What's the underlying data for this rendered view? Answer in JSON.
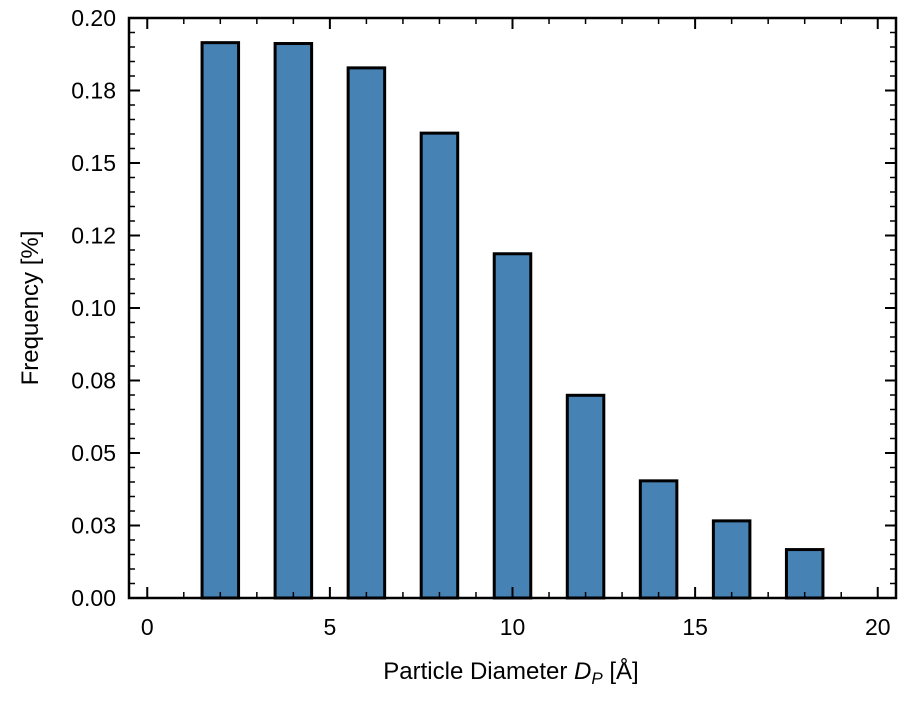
{
  "chart_data": {
    "type": "bar",
    "title": "",
    "xlabel": {
      "text": "Particle Diameter ",
      "symbol": "D",
      "subscript": "P",
      "unit": " [Å]"
    },
    "ylabel": "Frequency [%]",
    "xlim": [
      -0.5,
      20.5
    ],
    "ylim": [
      0,
      0.2
    ],
    "x_ticks": [
      {
        "value": 0,
        "label": "0"
      },
      {
        "value": 5,
        "label": "5"
      },
      {
        "value": 10,
        "label": "10"
      },
      {
        "value": 15,
        "label": "15"
      },
      {
        "value": 20,
        "label": "20"
      }
    ],
    "y_ticks": [
      {
        "value": 0.0,
        "label": "0.00"
      },
      {
        "value": 0.025,
        "label": "0.03"
      },
      {
        "value": 0.05,
        "label": "0.05"
      },
      {
        "value": 0.075,
        "label": "0.08"
      },
      {
        "value": 0.1,
        "label": "0.10"
      },
      {
        "value": 0.125,
        "label": "0.12"
      },
      {
        "value": 0.15,
        "label": "0.15"
      },
      {
        "value": 0.175,
        "label": "0.18"
      },
      {
        "value": 0.2,
        "label": "0.20"
      }
    ],
    "bin_width": 1,
    "x": [
      2,
      4,
      6,
      8,
      10,
      12,
      14,
      16,
      18
    ],
    "values": [
      0.1915,
      0.1912,
      0.1828,
      0.1603,
      0.1187,
      0.0699,
      0.0404,
      0.0266,
      0.0167
    ],
    "bar_color": "#4682b4",
    "edge_color": "#000000",
    "grid": false
  }
}
